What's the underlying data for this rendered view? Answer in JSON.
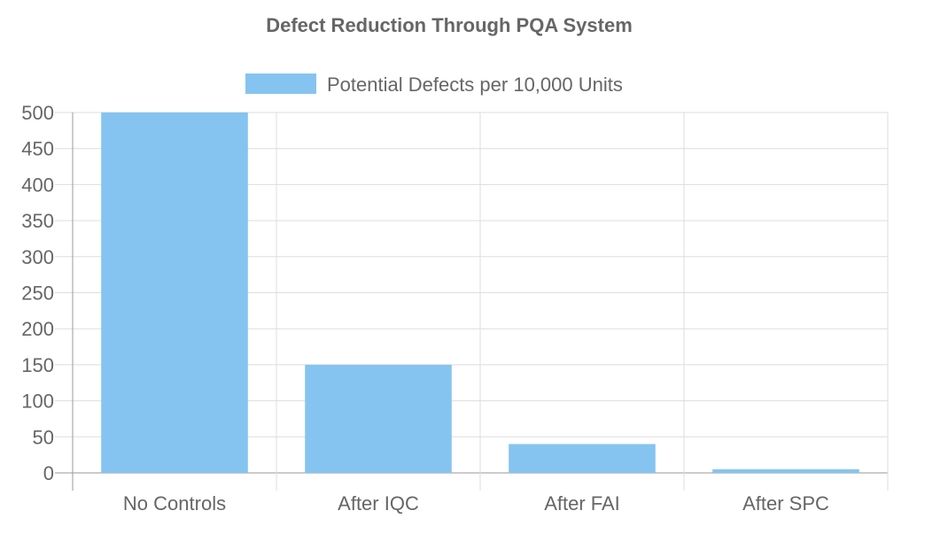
{
  "chart_data": {
    "type": "bar",
    "title": "Defect Reduction Through PQA System",
    "categories": [
      "No Controls",
      "After IQC",
      "After FAI",
      "After SPC"
    ],
    "series": [
      {
        "name": "Potential Defects per 10,000 Units",
        "values": [
          500,
          150,
          40,
          5
        ],
        "color": "#85c4f0"
      }
    ],
    "ylim": [
      0,
      500
    ],
    "yticks": [
      0,
      50,
      100,
      150,
      200,
      250,
      300,
      350,
      400,
      450,
      500
    ],
    "grid": true,
    "legend_position": "top"
  },
  "colors": {
    "bar": "#85c4f0",
    "grid": "#dddddd",
    "axis": "#999999",
    "text": "#666666"
  }
}
